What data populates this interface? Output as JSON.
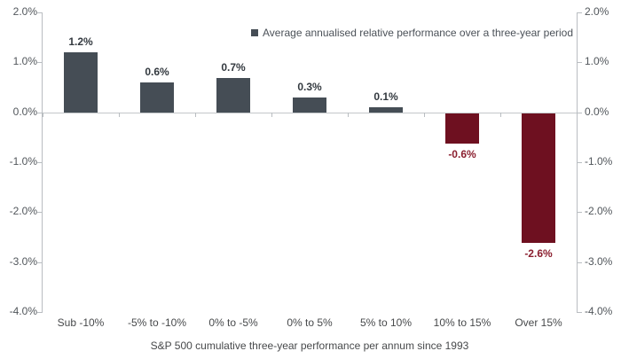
{
  "chart_data": {
    "type": "bar",
    "categories": [
      "Sub -10%",
      "-5% to -10%",
      "0% to -5%",
      "0% to 5%",
      "5% to 10%",
      "10% to 15%",
      "Over 15%"
    ],
    "values": [
      1.2,
      0.6,
      0.7,
      0.3,
      0.1,
      -0.6,
      -2.6
    ],
    "value_labels": [
      "1.2%",
      "0.6%",
      "0.7%",
      "0.3%",
      "0.1%",
      "-0.6%",
      "-2.6%"
    ],
    "legend": "Average annualised relative performance over a three-year period",
    "legend_position": "top-right",
    "xlabel": "S&P 500 cumulative three-year performance per annum since 1993",
    "ylabel": "",
    "ylim": [
      -4,
      2
    ],
    "ytick_values": [
      2,
      1,
      0,
      -1,
      -2,
      -3,
      -4
    ],
    "ytick_labels": [
      "2.0%",
      "1.0%",
      "0.0%",
      "-1.0%",
      "-2.0%",
      "-3.0%",
      "-4.0%"
    ],
    "grid": "zero-line-only",
    "colors": {
      "positive_bar": "#454d55",
      "negative_bar": "#6e1020",
      "positive_label": "#33393f",
      "negative_label": "#8b1f2f",
      "axis": "#b9bdc1",
      "tick_label": "#51565b",
      "legend_marker": "#454d55"
    }
  }
}
